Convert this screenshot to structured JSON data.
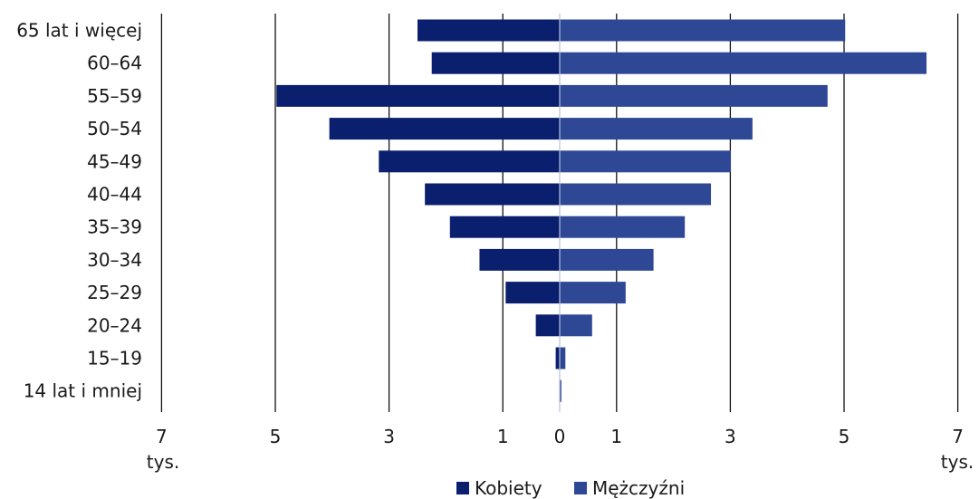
{
  "chart_data": {
    "type": "bar",
    "orientation": "horizontal",
    "layout": "population-pyramid",
    "categories": [
      "65 lat i więcej",
      "60–64",
      "55–59",
      "50–54",
      "45–49",
      "40–44",
      "35–39",
      "30–34",
      "25–29",
      "20–24",
      "15–19",
      "14 lat i mniej"
    ],
    "series": [
      {
        "name": "Kobiety",
        "side": "left",
        "color": "#0a1f6e",
        "values": [
          2.5,
          2.25,
          4.98,
          4.05,
          3.18,
          2.37,
          1.93,
          1.41,
          0.95,
          0.42,
          0.07,
          0.0
        ]
      },
      {
        "name": "Mężczyźni",
        "side": "right",
        "color": "#2f4896",
        "values": [
          5.02,
          6.45,
          4.71,
          3.39,
          3.01,
          2.66,
          2.2,
          1.65,
          1.16,
          0.57,
          0.1,
          0.03
        ]
      }
    ],
    "xlim": [
      -7,
      7
    ],
    "ticks": [
      {
        "value": -7,
        "label": "7"
      },
      {
        "value": -5,
        "label": "5"
      },
      {
        "value": -3,
        "label": "3"
      },
      {
        "value": -1,
        "label": "1"
      },
      {
        "value": 0,
        "label": "0"
      },
      {
        "value": 1,
        "label": "1"
      },
      {
        "value": 3,
        "label": "3"
      },
      {
        "value": 5,
        "label": "5"
      },
      {
        "value": 7,
        "label": "7"
      }
    ],
    "gridlines_at": [
      -7,
      -5,
      -3,
      -1,
      1,
      3,
      5,
      7
    ],
    "unit_label": "tys.",
    "legend": {
      "position": "bottom",
      "items": [
        "Kobiety",
        "Mężczyźni"
      ]
    },
    "grid": true
  }
}
